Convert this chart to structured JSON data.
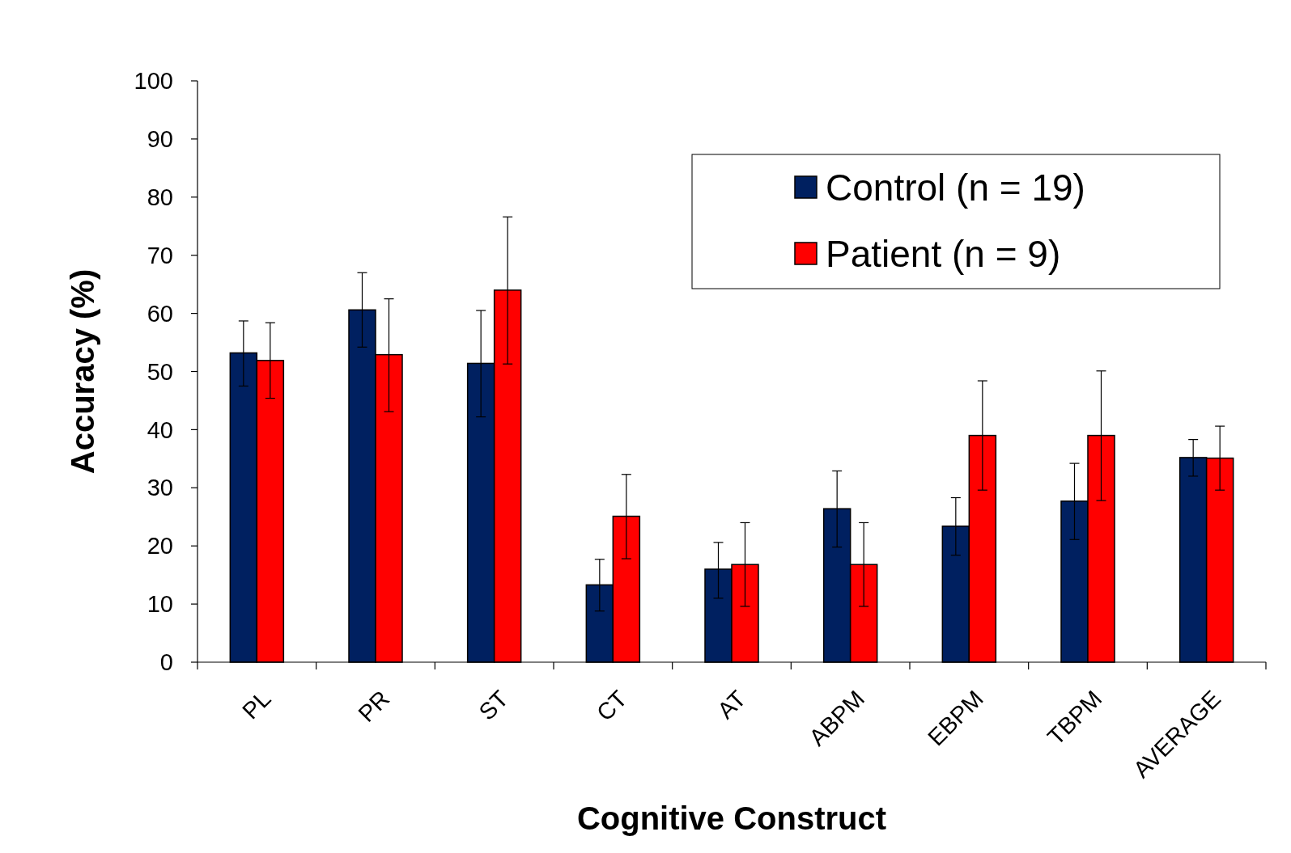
{
  "chart_data": {
    "type": "bar",
    "xlabel": "Cognitive Construct",
    "ylabel": "Accuracy (%)",
    "categories": [
      "PL",
      "PR",
      "ST",
      "CT",
      "AT",
      "ABPM",
      "EBPM",
      "TBPM",
      "AVERAGE"
    ],
    "series": [
      {
        "name": "Control (n = 19)",
        "color": "#002060",
        "values": [
          53.2,
          60.6,
          51.4,
          13.3,
          16,
          26.4,
          23.4,
          27.7,
          35.2
        ],
        "errors": [
          [
            47.5,
            58.7
          ],
          [
            54.2,
            67
          ],
          [
            42.2,
            60.5
          ],
          [
            8.8,
            17.7
          ],
          [
            11,
            20.6
          ],
          [
            19.8,
            32.9
          ],
          [
            18.4,
            28.3
          ],
          [
            21.1,
            34.2
          ],
          [
            32,
            38.3
          ]
        ]
      },
      {
        "name": "Patient (n = 9)",
        "color": "#ff0000",
        "values": [
          51.9,
          52.9,
          64,
          25.1,
          16.8,
          16.8,
          39,
          39,
          35.1
        ],
        "errors": [
          [
            45.4,
            58.4
          ],
          [
            43.1,
            62.5
          ],
          [
            51.3,
            76.6
          ],
          [
            17.8,
            32.3
          ],
          [
            9.6,
            24
          ],
          [
            9.6,
            24
          ],
          [
            29.6,
            48.4
          ],
          [
            27.8,
            50.1
          ],
          [
            29.6,
            40.6
          ]
        ]
      }
    ],
    "ylim": [
      0,
      100
    ],
    "yticks": [
      0,
      10,
      20,
      30,
      40,
      50,
      60,
      70,
      80,
      90,
      100
    ],
    "grid": false,
    "legend": "top right"
  }
}
